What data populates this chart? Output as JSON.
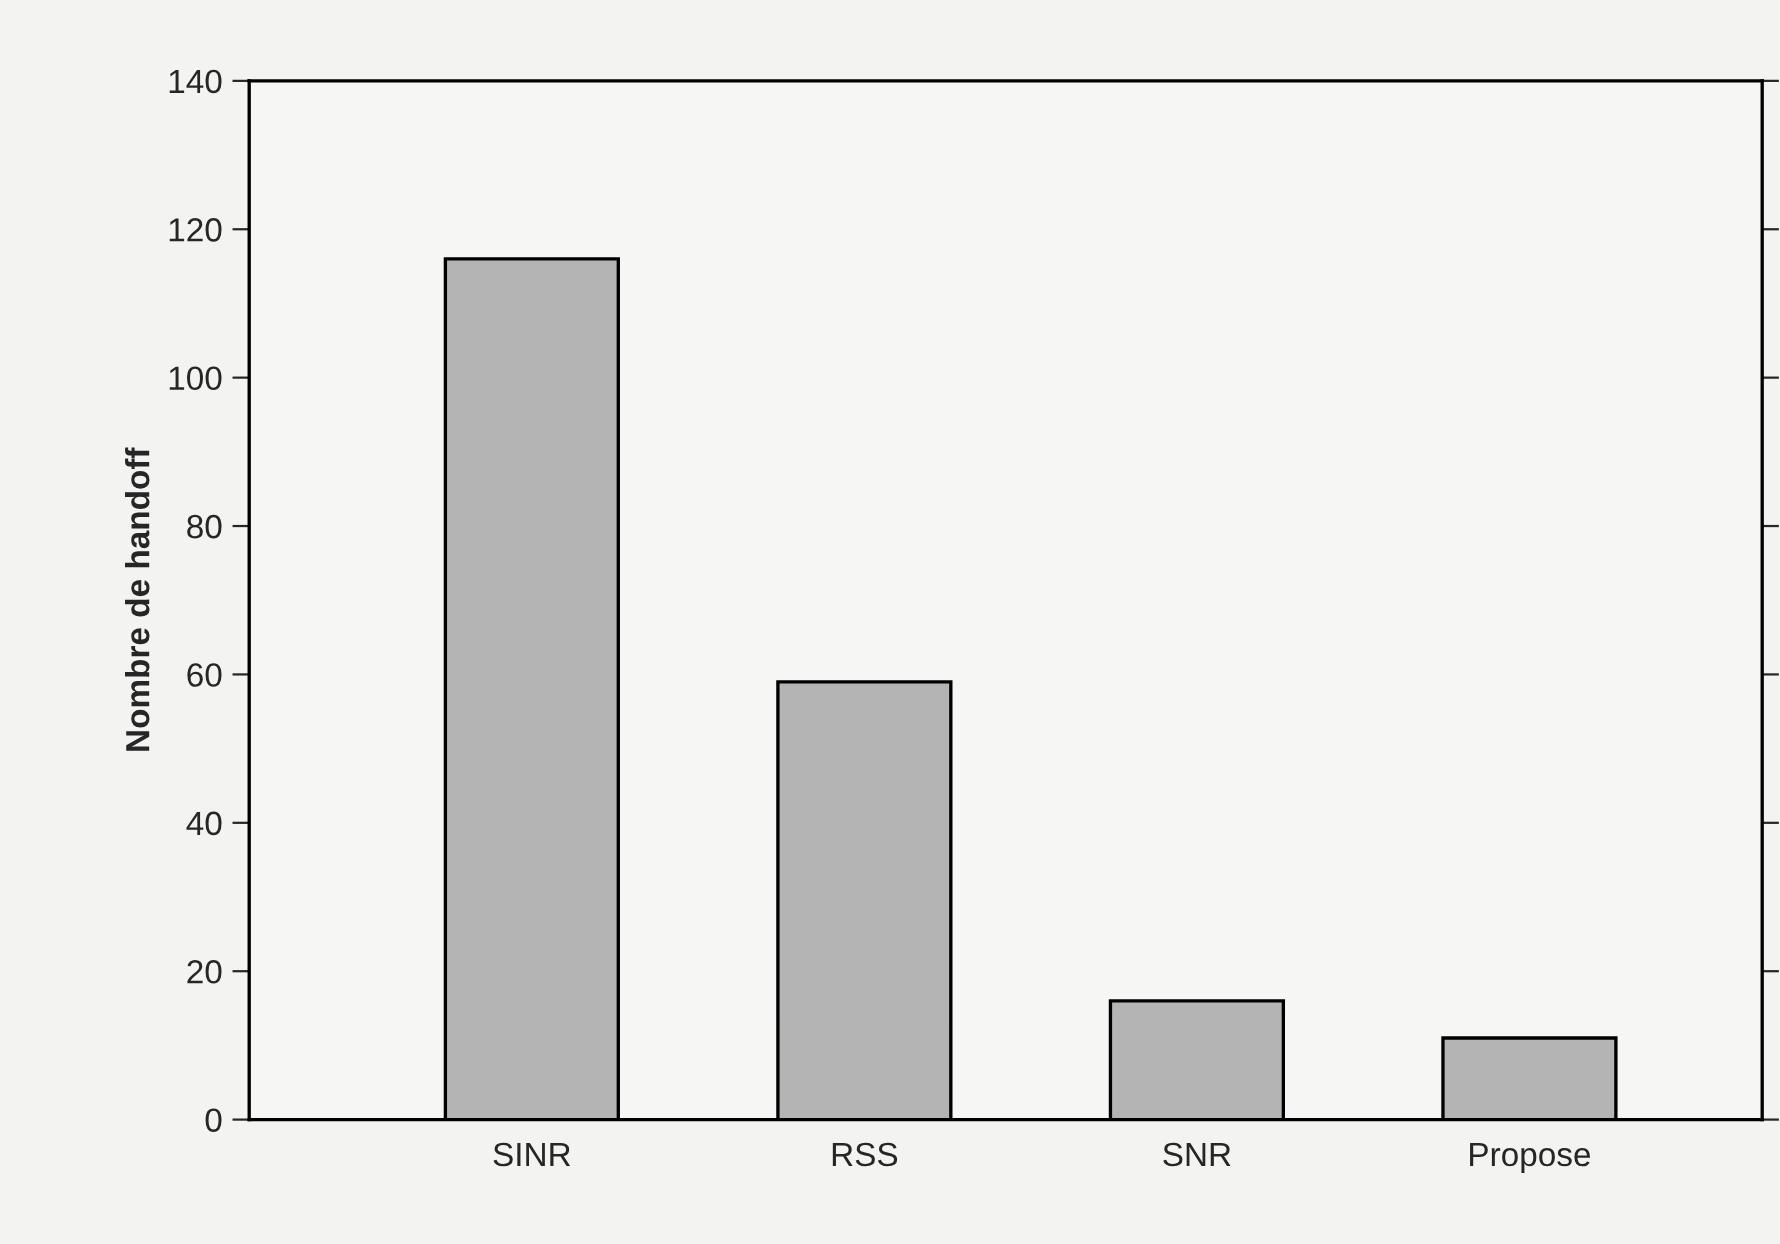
{
  "chart_data": {
    "type": "bar",
    "ylabel": "Nombre de handoff",
    "categories": [
      "SINR",
      "RSS",
      "SNR",
      "Propose"
    ],
    "values": [
      116,
      59,
      16,
      11
    ],
    "color": "#b4b4b4",
    "ylim": [
      0,
      140
    ],
    "yticks": [
      0,
      20,
      40,
      60,
      80,
      100,
      120,
      140
    ],
    "grid": false,
    "legend": false
  }
}
